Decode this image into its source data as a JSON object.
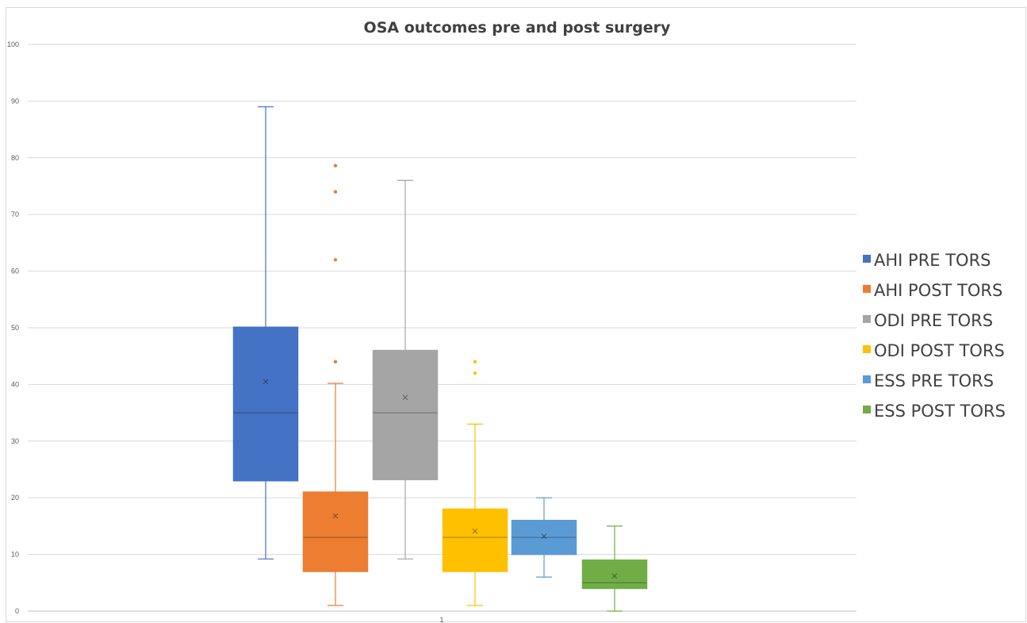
{
  "chart_data": {
    "type": "box",
    "title": "OSA outcomes pre and post surgery",
    "xlabel": "",
    "ylabel": "",
    "ylim": [
      0,
      100
    ],
    "y_ticks": [
      0,
      10,
      20,
      30,
      40,
      50,
      60,
      70,
      80,
      90,
      100
    ],
    "categories": [
      "1"
    ],
    "grid": true,
    "legend_position": "right",
    "series": [
      {
        "name": "AHI PRE TORS",
        "color": "#4472c4",
        "whisker_low": 9.2,
        "q1": 23,
        "median": 35,
        "q3": 50.1,
        "whisker_high": 89,
        "mean": 40.5,
        "outliers": []
      },
      {
        "name": "AHI POST TORS",
        "color": "#ed7d31",
        "whisker_low": 1,
        "q1": 7,
        "median": 13,
        "q3": 21,
        "whisker_high": 40.2,
        "mean": 16.8,
        "outliers": [
          44,
          62,
          74,
          78.6
        ]
      },
      {
        "name": "ODI PRE TORS",
        "color": "#a5a5a5",
        "whisker_low": 9.2,
        "q1": 23.2,
        "median": 35,
        "q3": 46,
        "whisker_high": 76,
        "mean": 37.7,
        "outliers": []
      },
      {
        "name": "ODI POST TORS",
        "color": "#ffc000",
        "whisker_low": 1,
        "q1": 7,
        "median": 13,
        "q3": 18,
        "whisker_high": 33,
        "mean": 14.1,
        "outliers": [
          42,
          44
        ]
      },
      {
        "name": "ESS PRE TORS",
        "color": "#5b9bd5",
        "whisker_low": 6,
        "q1": 10,
        "median": 13,
        "q3": 16,
        "whisker_high": 20,
        "mean": 13.2,
        "outliers": []
      },
      {
        "name": "ESS POST TORS",
        "color": "#70ad47",
        "whisker_low": 0,
        "q1": 4,
        "median": 5,
        "q3": 9,
        "whisker_high": 15,
        "mean": 6.2,
        "outliers": []
      }
    ]
  }
}
